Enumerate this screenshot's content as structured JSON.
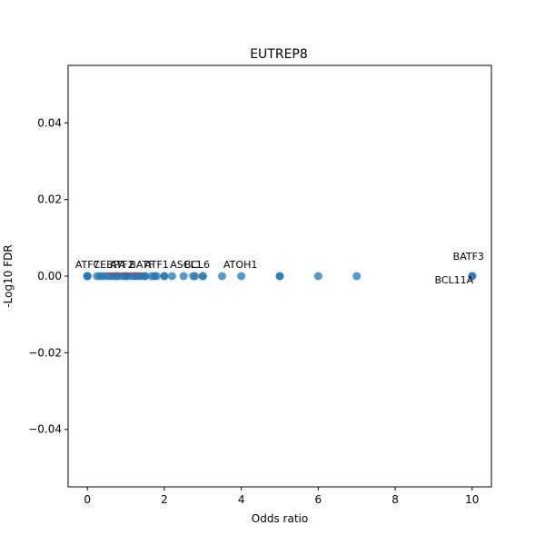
{
  "chart_data": {
    "type": "scatter",
    "title": "EUTREP8",
    "xlabel": "Odds ratio",
    "ylabel": "-Log10 FDR",
    "xlim": [
      -0.5,
      10.5
    ],
    "ylim": [
      -0.055,
      0.055
    ],
    "xticks": [
      0,
      2,
      4,
      6,
      8,
      10
    ],
    "yticks": [
      -0.04,
      -0.02,
      0.0,
      0.02,
      0.04
    ],
    "xtick_labels": [
      "0",
      "2",
      "4",
      "6",
      "8",
      "10"
    ],
    "ytick_labels": [
      "−0.04",
      "−0.02",
      "0.00",
      "0.02",
      "0.04"
    ],
    "grid": false,
    "marker_color": "#1f77b4",
    "points": [
      {
        "x": 0.0,
        "y": 0.0
      },
      {
        "x": 0.0,
        "y": 0.0
      },
      {
        "x": 0.0,
        "y": 0.0
      },
      {
        "x": 0.25,
        "y": 0.0
      },
      {
        "x": 0.33,
        "y": 0.0
      },
      {
        "x": 0.4,
        "y": 0.0
      },
      {
        "x": 0.5,
        "y": 0.0
      },
      {
        "x": 0.6,
        "y": 0.0
      },
      {
        "x": 0.67,
        "y": 0.0
      },
      {
        "x": 0.75,
        "y": 0.0
      },
      {
        "x": 0.8,
        "y": 0.0
      },
      {
        "x": 0.9,
        "y": 0.0
      },
      {
        "x": 1.0,
        "y": 0.0
      },
      {
        "x": 1.0,
        "y": 0.0
      },
      {
        "x": 1.1,
        "y": 0.0
      },
      {
        "x": 1.2,
        "y": 0.0
      },
      {
        "x": 1.25,
        "y": 0.0
      },
      {
        "x": 1.33,
        "y": 0.0
      },
      {
        "x": 1.4,
        "y": 0.0
      },
      {
        "x": 1.5,
        "y": 0.0
      },
      {
        "x": 1.5,
        "y": 0.0
      },
      {
        "x": 1.67,
        "y": 0.0
      },
      {
        "x": 1.75,
        "y": 0.0
      },
      {
        "x": 1.8,
        "y": 0.0
      },
      {
        "x": 2.0,
        "y": 0.0
      },
      {
        "x": 2.0,
        "y": 0.0
      },
      {
        "x": 2.2,
        "y": 0.0
      },
      {
        "x": 2.5,
        "y": 0.0
      },
      {
        "x": 2.75,
        "y": 0.0
      },
      {
        "x": 2.8,
        "y": 0.0
      },
      {
        "x": 3.0,
        "y": 0.0
      },
      {
        "x": 3.0,
        "y": 0.0
      },
      {
        "x": 3.5,
        "y": 0.0
      },
      {
        "x": 4.0,
        "y": 0.0
      },
      {
        "x": 5.0,
        "y": 0.0
      },
      {
        "x": 5.0,
        "y": 0.0
      },
      {
        "x": 6.0,
        "y": 0.0
      },
      {
        "x": 7.0,
        "y": 0.0
      },
      {
        "x": 10.0,
        "y": 0.0
      },
      {
        "x": 10.0,
        "y": 0.0
      }
    ],
    "annotations": [
      {
        "text": "ATF7",
        "x": 0.0,
        "y": 0.0,
        "dx": 0,
        "dy": -9,
        "anchor": "middle"
      },
      {
        "text": "CEBPA",
        "x": 0.9,
        "y": 0.0,
        "dx": -14,
        "dy": -9,
        "anchor": "middle"
      },
      {
        "text": "ATF2",
        "x": 0.9,
        "y": 0.0,
        "dx": 0,
        "dy": -9,
        "anchor": "middle"
      },
      {
        "text": "BATF",
        "x": 1.6,
        "y": 0.0,
        "dx": -8,
        "dy": -9,
        "anchor": "middle"
      },
      {
        "text": "ATF1",
        "x": 1.8,
        "y": 0.0,
        "dx": 0,
        "dy": -9,
        "anchor": "middle"
      },
      {
        "text": "ASCL1",
        "x": 2.85,
        "y": 0.0,
        "dx": -12,
        "dy": -9,
        "anchor": "middle"
      },
      {
        "text": "BCL6",
        "x": 2.85,
        "y": 0.0,
        "dx": 0,
        "dy": -9,
        "anchor": "middle"
      },
      {
        "text": "ATOH1",
        "x": 3.6,
        "y": 0.0,
        "dx": 16,
        "dy": -9,
        "anchor": "middle"
      },
      {
        "text": "BATF3",
        "x": 10.0,
        "y": 0.0,
        "dx": -4,
        "dy": -18,
        "anchor": "middle"
      },
      {
        "text": "BCL11A",
        "x": 10.0,
        "y": 0.0,
        "dx": -20,
        "dy": 8,
        "anchor": "middle"
      }
    ]
  }
}
